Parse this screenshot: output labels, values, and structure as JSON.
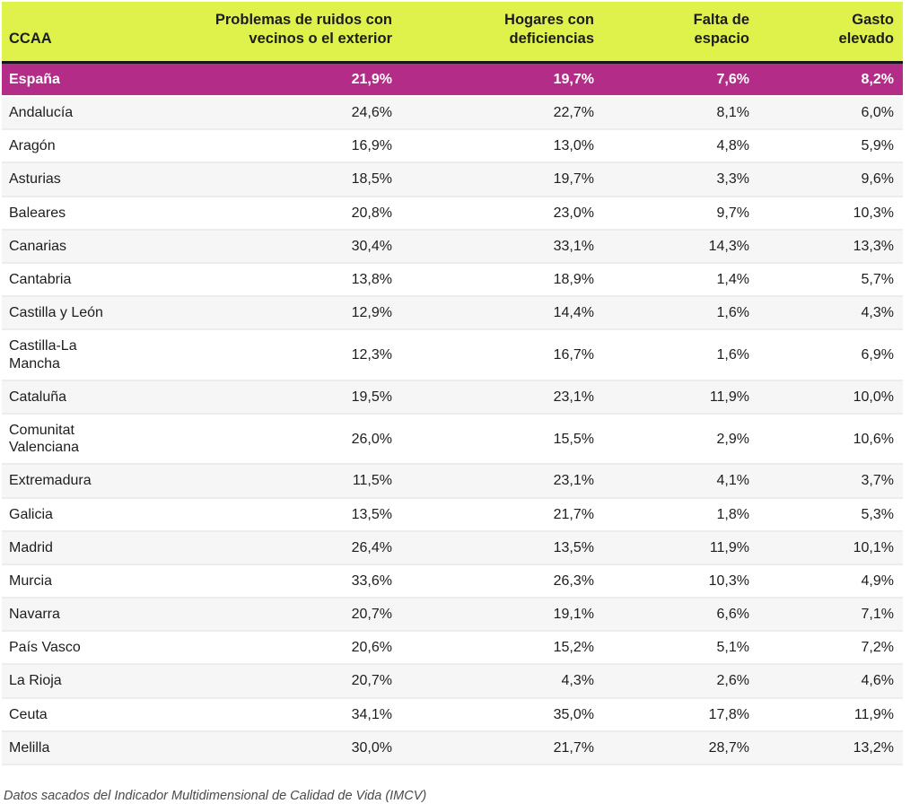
{
  "chart_data": {
    "type": "table",
    "columns": [
      "CCAA",
      "Problemas de ruidos con\nvecinos o el exterior",
      "Hogares con\ndeficiencias",
      "Falta de\nespacio",
      "Gasto\nelevado"
    ],
    "highlight_row": {
      "label": "España",
      "values": [
        "21,9%",
        "19,7%",
        "7,6%",
        "8,2%"
      ]
    },
    "rows": [
      {
        "label": "Andalucía",
        "values": [
          "24,6%",
          "22,7%",
          "8,1%",
          "6,0%"
        ]
      },
      {
        "label": "Aragón",
        "values": [
          "16,9%",
          "13,0%",
          "4,8%",
          "5,9%"
        ]
      },
      {
        "label": "Asturias",
        "values": [
          "18,5%",
          "19,7%",
          "3,3%",
          "9,6%"
        ]
      },
      {
        "label": "Baleares",
        "values": [
          "20,8%",
          "23,0%",
          "9,7%",
          "10,3%"
        ]
      },
      {
        "label": "Canarias",
        "values": [
          "30,4%",
          "33,1%",
          "14,3%",
          "13,3%"
        ]
      },
      {
        "label": "Cantabria",
        "values": [
          "13,8%",
          "18,9%",
          "1,4%",
          "5,7%"
        ]
      },
      {
        "label": "Castilla y León",
        "values": [
          "12,9%",
          "14,4%",
          "1,6%",
          "4,3%"
        ]
      },
      {
        "label": "Castilla-La Mancha",
        "values": [
          "12,3%",
          "16,7%",
          "1,6%",
          "6,9%"
        ]
      },
      {
        "label": "Cataluña",
        "values": [
          "19,5%",
          "23,1%",
          "11,9%",
          "10,0%"
        ]
      },
      {
        "label": "Comunitat Valenciana",
        "values": [
          "26,0%",
          "15,5%",
          "2,9%",
          "10,6%"
        ]
      },
      {
        "label": "Extremadura",
        "values": [
          "11,5%",
          "23,1%",
          "4,1%",
          "3,7%"
        ]
      },
      {
        "label": "Galicia",
        "values": [
          "13,5%",
          "21,7%",
          "1,8%",
          "5,3%"
        ]
      },
      {
        "label": "Madrid",
        "values": [
          "26,4%",
          "13,5%",
          "11,9%",
          "10,1%"
        ]
      },
      {
        "label": "Murcia",
        "values": [
          "33,6%",
          "26,3%",
          "10,3%",
          "4,9%"
        ]
      },
      {
        "label": "Navarra",
        "values": [
          "20,7%",
          "19,1%",
          "6,6%",
          "7,1%"
        ]
      },
      {
        "label": "País Vasco",
        "values": [
          "20,6%",
          "15,2%",
          "5,1%",
          "7,2%"
        ]
      },
      {
        "label": "La Rioja",
        "values": [
          "20,7%",
          "4,3%",
          "2,6%",
          "4,6%"
        ]
      },
      {
        "label": "Ceuta",
        "values": [
          "34,1%",
          "35,0%",
          "17,8%",
          "11,9%"
        ]
      },
      {
        "label": "Melilla",
        "values": [
          "30,0%",
          "21,7%",
          "28,7%",
          "13,2%"
        ]
      }
    ],
    "footnote": "Datos sacados del Indicador Multidimensional de Calidad de Vida (IMCV)"
  },
  "colors": {
    "header_bg": "#dff24b",
    "header_text": "#1d1d1d",
    "highlight_bg": "#b32c87",
    "highlight_text": "#ffffff",
    "stripe_bg": "#f6f6f6",
    "row_divider": "#ececec",
    "header_divider": "#161616",
    "body_text": "#1d1d1d",
    "footnote_text": "#4a4a4a"
  }
}
